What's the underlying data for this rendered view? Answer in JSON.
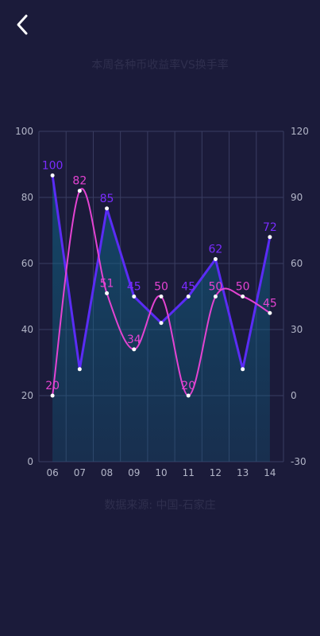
{
  "header": {
    "back_icon": "chevron-left-icon",
    "title": "本周各种币收益率VS换手率"
  },
  "footer": {
    "source": "数据来源: 中国-石家庄"
  },
  "colors": {
    "background": "#1b1b3a",
    "series_a": "#5a2cf5",
    "series_a_label": "#7a2cff",
    "series_b": "#e443d2",
    "area_fill": "#0e6a8c",
    "grid": "#3a3d62",
    "tick": "#b3b6c8"
  },
  "chart_data": {
    "type": "line",
    "categories": [
      "06",
      "07",
      "08",
      "09",
      "10",
      "11",
      "12",
      "13",
      "14"
    ],
    "left_axis": {
      "min": 0,
      "max": 100,
      "ticks": [
        0,
        20,
        40,
        60,
        80,
        100
      ]
    },
    "right_axis": {
      "min": -30,
      "max": 120,
      "ticks": [
        -30,
        0,
        30,
        60,
        90,
        120
      ]
    },
    "grid": true,
    "series": [
      {
        "axis": "right",
        "values": [
          100,
          12,
          85,
          45,
          33,
          45,
          62,
          12,
          72
        ],
        "labels": [
          "100",
          "",
          "85",
          "45",
          "",
          "45",
          "62",
          "",
          "72"
        ],
        "area": true
      },
      {
        "axis": "left",
        "values": [
          20,
          82,
          51,
          34,
          50,
          20,
          50,
          50,
          45
        ],
        "labels": [
          "20",
          "82",
          "51",
          "34",
          "50",
          "20",
          "50",
          "50",
          "45"
        ],
        "smooth": true
      }
    ]
  }
}
